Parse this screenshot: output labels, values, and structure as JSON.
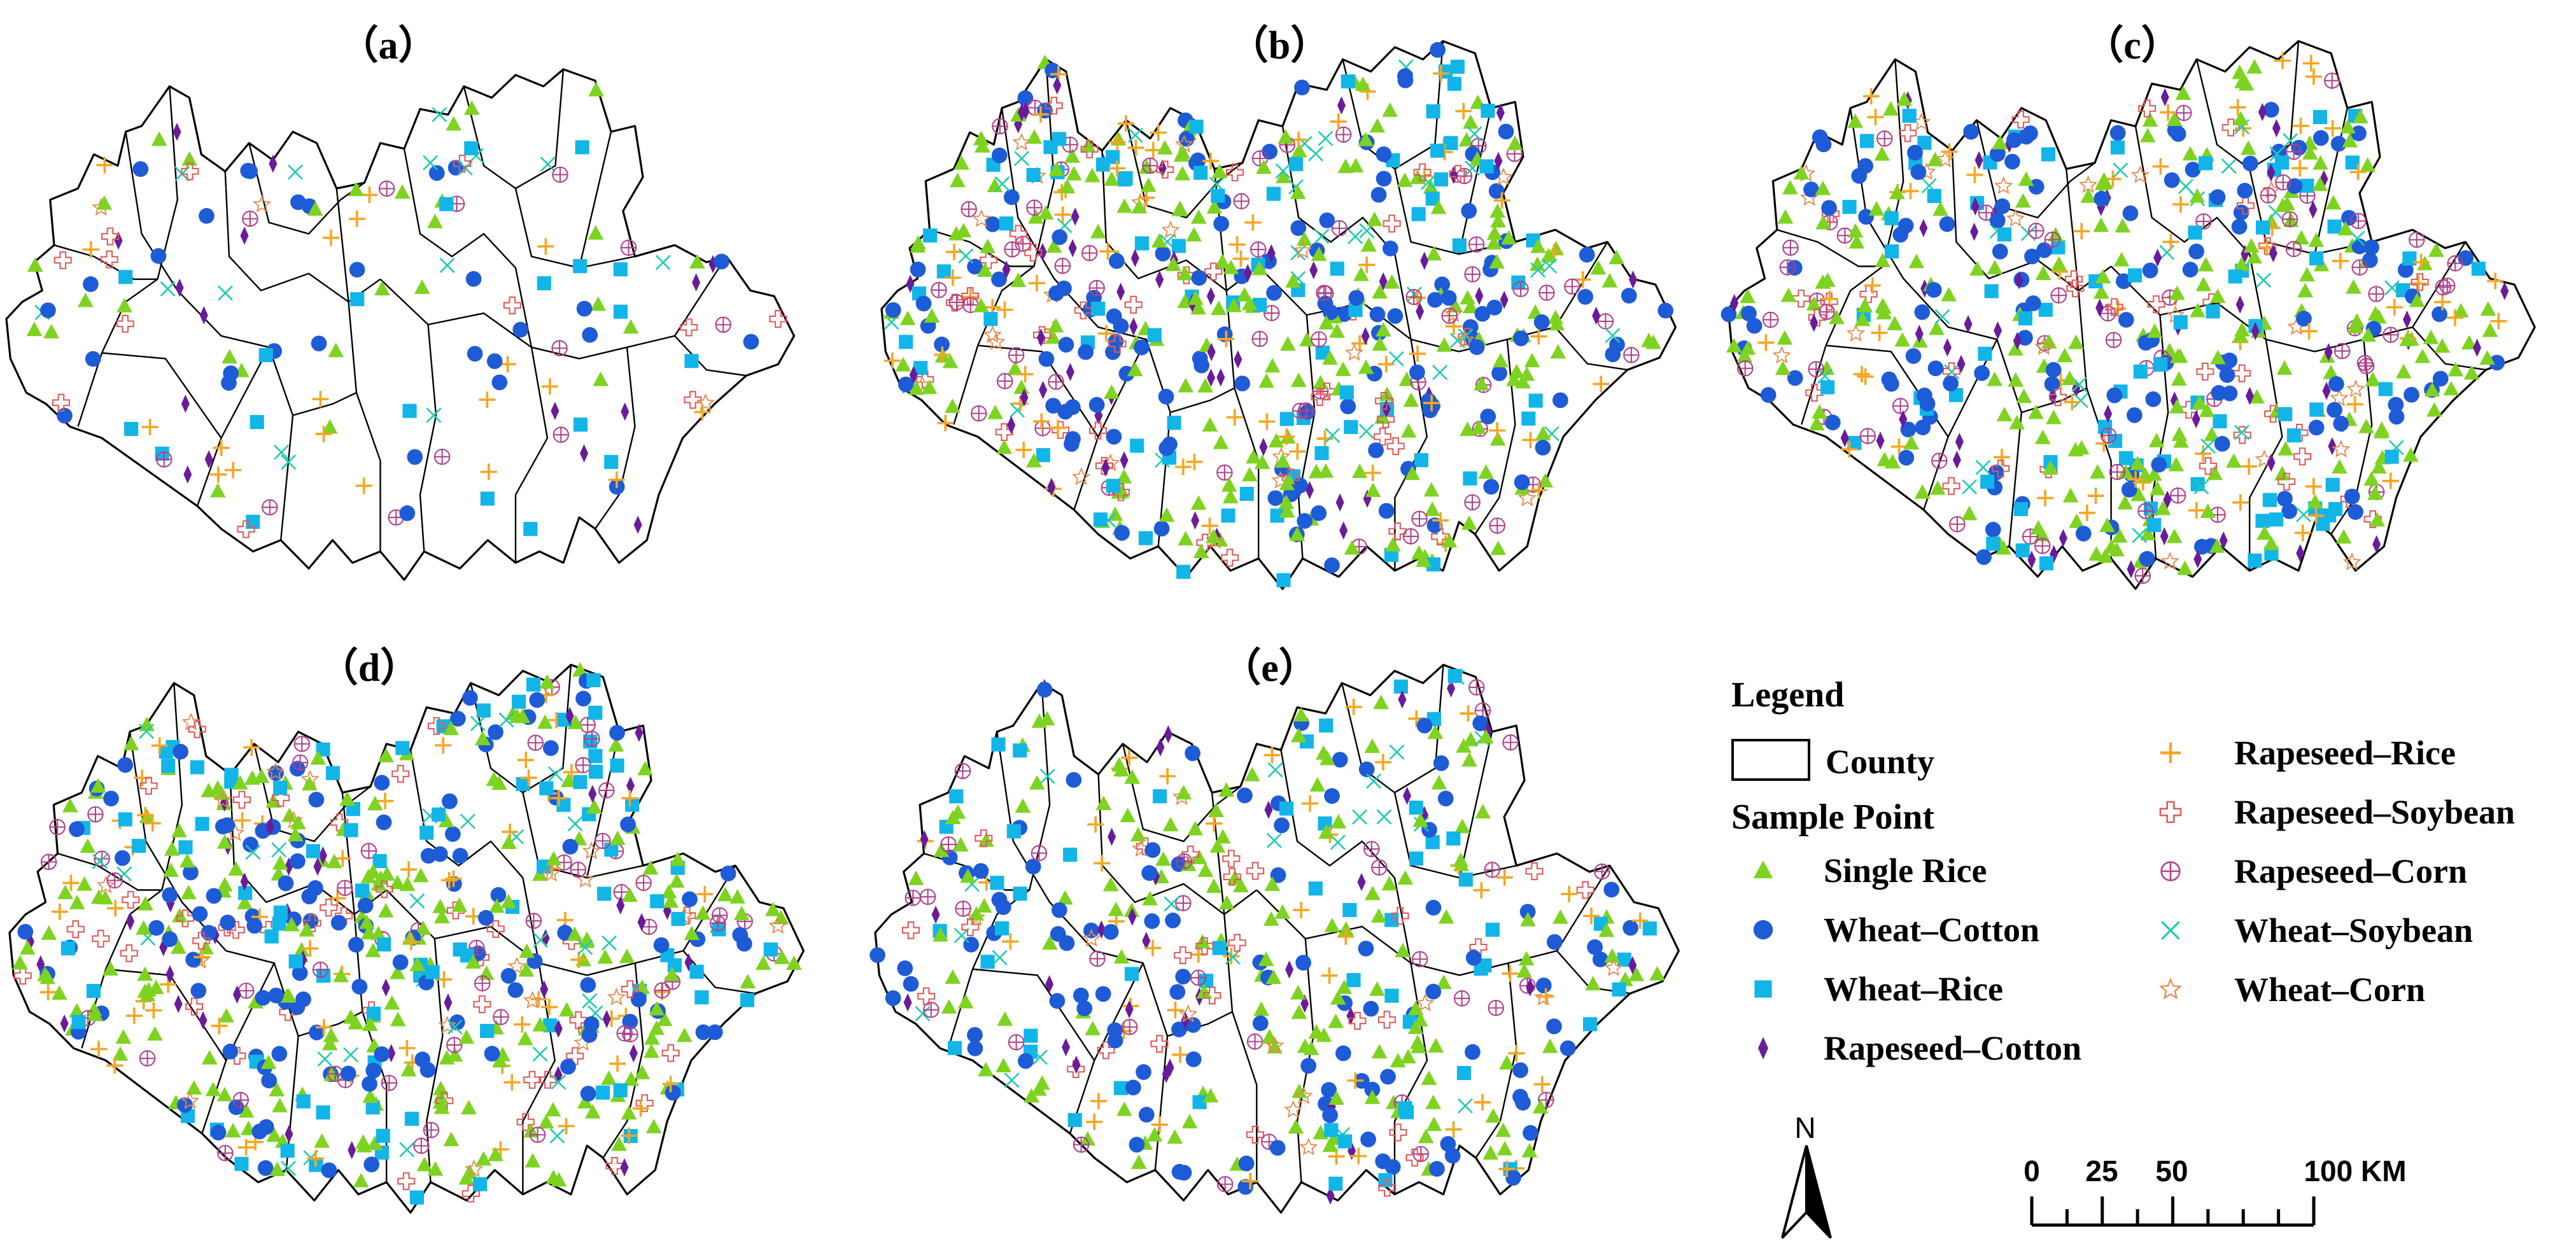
{
  "panels": [
    {
      "label": "（a）",
      "density": 0.22
    },
    {
      "label": "（b）",
      "density": 1.0
    },
    {
      "label": "（c）",
      "density": 1.0
    },
    {
      "label": "（d）",
      "density": 1.0
    },
    {
      "label": "（e）",
      "density": 0.7
    }
  ],
  "legend": {
    "title": "Legend",
    "county_label": "County",
    "sample_point_label": "Sample Point",
    "items": [
      {
        "label": "Single Rice",
        "symbol": "triangle",
        "color": "#7ED321"
      },
      {
        "label": "Wheat–Cotton",
        "symbol": "circle",
        "color": "#1E5BD6"
      },
      {
        "label": "Wheat–Rice",
        "symbol": "square",
        "color": "#12B5E8"
      },
      {
        "label": "Rapeseed–Cotton",
        "symbol": "diamond",
        "color": "#6A1B9A"
      },
      {
        "label": "Rapeseed–Rice",
        "symbol": "plus",
        "color": "#F5A623"
      },
      {
        "label": "Rapeseed–Soybean",
        "symbol": "hollow-plus",
        "color": "#E05A5A"
      },
      {
        "label": "Rapeseed–Corn",
        "symbol": "circle-plus",
        "color": "#B0408C"
      },
      {
        "label": "Wheat–Soybean",
        "symbol": "x",
        "color": "#1ECBB0"
      },
      {
        "label": "Wheat–Corn",
        "symbol": "star",
        "color": "#E8884A"
      }
    ]
  },
  "north_arrow": {
    "label": "N"
  },
  "scale_bar": {
    "ticks": [
      "0",
      "25",
      "50",
      "100 KM"
    ]
  }
}
